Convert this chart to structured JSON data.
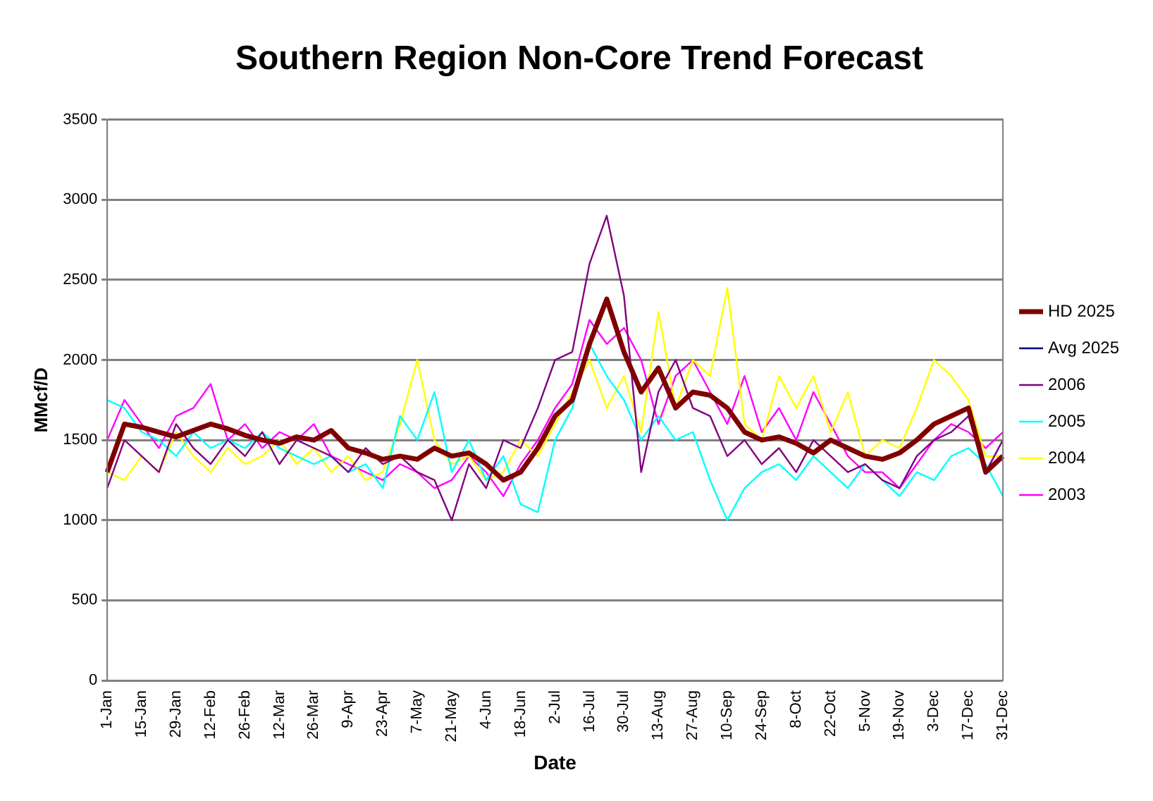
{
  "chart_data": {
    "type": "line",
    "title": "Southern Region Non-Core Trend Forecast",
    "xlabel": "Date",
    "ylabel": "MMcf/D",
    "categories": [
      "1-Jan",
      null,
      "15-Jan",
      null,
      "29-Jan",
      null,
      "12-Feb",
      null,
      "26-Feb",
      null,
      "12-Mar",
      null,
      "26-Mar",
      null,
      "9-Apr",
      null,
      "23-Apr",
      null,
      "7-May",
      null,
      "21-May",
      null,
      "4-Jun",
      null,
      "18-Jun",
      null,
      "2-Jul",
      null,
      "16-Jul",
      null,
      "30-Jul",
      null,
      "13-Aug",
      null,
      "27-Aug",
      null,
      "10-Sep",
      null,
      "24-Sep",
      null,
      "8-Oct",
      null,
      "22-Oct",
      null,
      "5-Nov",
      null,
      "19-Nov",
      null,
      "3-Dec",
      null,
      "17-Dec",
      null,
      "31-Dec"
    ],
    "series": [
      {
        "name": "2003",
        "color": "#ff00ff",
        "values": [
          1500,
          1750,
          1600,
          1450,
          1650,
          1700,
          1850,
          1500,
          1600,
          1450,
          1550,
          1500,
          1600,
          1400,
          1350,
          1300,
          1250,
          1350,
          1300,
          1200,
          1250,
          1400,
          1300,
          1150,
          1350,
          1500,
          1700,
          1850,
          2250,
          2100,
          2200,
          2000,
          1600,
          1900,
          2000,
          1800,
          1600,
          1900,
          1550,
          1700,
          1500,
          1800,
          1600,
          1400,
          1300,
          1300,
          1200,
          1350,
          1500,
          1600,
          1550,
          1450,
          1550
        ]
      },
      {
        "name": "2004",
        "color": "#ffff00",
        "values": [
          1300,
          1250,
          1400,
          1300,
          1550,
          1400,
          1300,
          1450,
          1350,
          1400,
          1500,
          1350,
          1450,
          1300,
          1400,
          1250,
          1300,
          1600,
          2000,
          1500,
          1350,
          1400,
          1250,
          1300,
          1500,
          1400,
          1600,
          1800,
          2000,
          1700,
          1900,
          1550,
          2300,
          1700,
          2000,
          1900,
          2450,
          1600,
          1500,
          1900,
          1700,
          1900,
          1550,
          1800,
          1400,
          1500,
          1450,
          1700,
          2000,
          1900,
          1750,
          1400,
          1400
        ]
      },
      {
        "name": "2005",
        "color": "#00ffff",
        "values": [
          1750,
          1700,
          1550,
          1500,
          1400,
          1550,
          1450,
          1500,
          1450,
          1550,
          1450,
          1400,
          1350,
          1400,
          1300,
          1350,
          1200,
          1650,
          1500,
          1800,
          1300,
          1500,
          1250,
          1400,
          1100,
          1050,
          1500,
          1700,
          2100,
          1900,
          1750,
          1500,
          1650,
          1500,
          1550,
          1250,
          1000,
          1200,
          1300,
          1350,
          1250,
          1400,
          1300,
          1200,
          1350,
          1250,
          1150,
          1300,
          1250,
          1400,
          1450,
          1350,
          1150
        ]
      },
      {
        "name": "2006",
        "color": "#800080",
        "values": [
          1200,
          1500,
          1400,
          1300,
          1600,
          1450,
          1350,
          1500,
          1400,
          1550,
          1350,
          1500,
          1450,
          1400,
          1300,
          1450,
          1350,
          1400,
          1300,
          1250,
          1000,
          1350,
          1200,
          1500,
          1450,
          1700,
          2000,
          2050,
          2600,
          2900,
          2400,
          1300,
          1800,
          2000,
          1700,
          1650,
          1400,
          1500,
          1350,
          1450,
          1300,
          1500,
          1400,
          1300,
          1350,
          1250,
          1200,
          1400,
          1500,
          1550,
          1650,
          1300,
          1500
        ]
      },
      {
        "name": "Avg 2025",
        "color": "#000080",
        "values": [
          null,
          null,
          null,
          null,
          null,
          null,
          null,
          null,
          null,
          null,
          null,
          null,
          null,
          null,
          null,
          null,
          null,
          null,
          null,
          null,
          null,
          null,
          null,
          null,
          null,
          null,
          null,
          null,
          null,
          null,
          null,
          null,
          null,
          null,
          null,
          null,
          null,
          null,
          null,
          null,
          null,
          null,
          null,
          null,
          null,
          null,
          null,
          null,
          null,
          null,
          null,
          null,
          null
        ]
      },
      {
        "name": "HD 2025",
        "color": "#800000",
        "values": [
          1300,
          1600,
          1580,
          1550,
          1520,
          1560,
          1600,
          1570,
          1530,
          1500,
          1480,
          1520,
          1500,
          1560,
          1450,
          1420,
          1380,
          1400,
          1380,
          1450,
          1400,
          1420,
          1350,
          1250,
          1300,
          1450,
          1650,
          1750,
          2100,
          2380,
          2050,
          1800,
          1950,
          1700,
          1800,
          1780,
          1700,
          1550,
          1500,
          1520,
          1480,
          1420,
          1500,
          1450,
          1400,
          1380,
          1420,
          1500,
          1600,
          1650,
          1700,
          1300,
          1400
        ]
      }
    ],
    "ylim": [
      0,
      3500
    ],
    "yticks": [
      0,
      500,
      1000,
      1500,
      2000,
      2500,
      3000,
      3500
    ],
    "grid": "y",
    "legend": "right",
    "marker": "none",
    "line_style": "solid"
  }
}
